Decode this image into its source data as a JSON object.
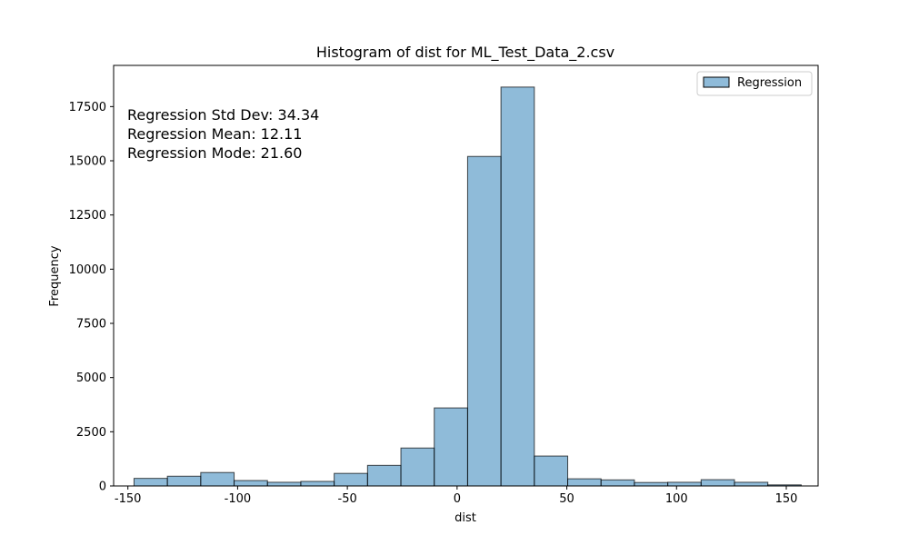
{
  "chart_data": {
    "type": "bar",
    "title": "Histogram of dist for ML_Test_Data_2.csv",
    "xlabel": "dist",
    "ylabel": "Frequency",
    "xlim": [
      -156.5,
      164.5
    ],
    "ylim": [
      0,
      19400
    ],
    "xticks": [
      -150,
      -100,
      -50,
      0,
      50,
      100,
      150
    ],
    "yticks": [
      0,
      2500,
      5000,
      7500,
      10000,
      12500,
      15000,
      17500
    ],
    "xtick_labels": [
      "-150",
      "-100",
      "-50",
      "0",
      "50",
      "100",
      "150"
    ],
    "ytick_labels": [
      "0",
      "2500",
      "5000",
      "7500",
      "10000",
      "12500",
      "15000",
      "17500"
    ],
    "legend": {
      "position": "top-right",
      "entries": [
        "Regression"
      ]
    },
    "grid": false,
    "colors": {
      "bar_fill": "#1f77b4",
      "bar_fill_opacity": 0.5,
      "bar_edge": "#000000"
    },
    "bin_edges": [
      -147.2,
      -132.0,
      -116.8,
      -101.6,
      -86.4,
      -71.2,
      -56.0,
      -40.8,
      -25.6,
      -10.4,
      4.8,
      20.0,
      35.2,
      50.4,
      65.6,
      80.8,
      96.0,
      111.2,
      126.4,
      141.6,
      156.8
    ],
    "series": [
      {
        "name": "Regression",
        "values": [
          350,
          450,
          620,
          250,
          170,
          210,
          580,
          950,
          1750,
          3600,
          15200,
          18400,
          1380,
          330,
          280,
          160,
          170,
          290,
          170,
          50
        ]
      }
    ],
    "annotations": [
      "Regression Std Dev: 34.34",
      "Regression Mean: 12.11",
      "Regression Mode: 21.60"
    ]
  }
}
